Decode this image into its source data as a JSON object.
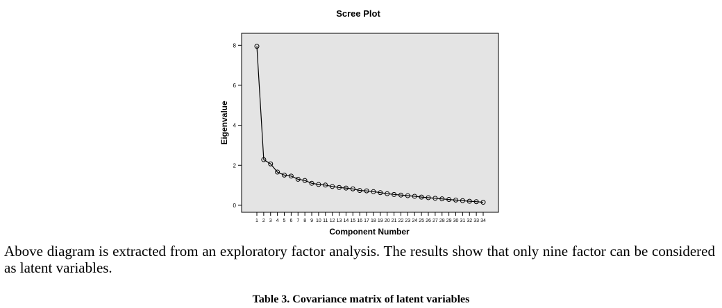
{
  "chart_data": {
    "type": "line",
    "title": "Scree Plot",
    "xlabel": "Component Number",
    "ylabel": "Eigenvalue",
    "ylim": [
      -0.35,
      8.6
    ],
    "y_ticks": [
      0,
      2,
      4,
      6,
      8
    ],
    "grid": false,
    "marker": "open-circle",
    "categories": [
      "1",
      "2",
      "3",
      "4",
      "5",
      "6",
      "7",
      "8",
      "9",
      "10",
      "11",
      "12",
      "13",
      "14",
      "15",
      "16",
      "17",
      "18",
      "19",
      "20",
      "21",
      "22",
      "23",
      "24",
      "25",
      "26",
      "27",
      "28",
      "29",
      "30",
      "31",
      "32",
      "33",
      "34"
    ],
    "values": [
      7.95,
      2.28,
      2.07,
      1.66,
      1.51,
      1.46,
      1.3,
      1.24,
      1.1,
      1.04,
      1.01,
      0.94,
      0.89,
      0.86,
      0.82,
      0.74,
      0.72,
      0.68,
      0.63,
      0.58,
      0.54,
      0.51,
      0.48,
      0.45,
      0.41,
      0.38,
      0.35,
      0.32,
      0.29,
      0.26,
      0.23,
      0.2,
      0.18,
      0.15
    ]
  },
  "text": {
    "paragraph": "Above diagram is extracted from an exploratory factor analysis. The results show that only nine factor can be considered as latent variables.",
    "table_caption": "Table 3. Covariance matrix of latent variables"
  },
  "colors": {
    "plot_background": "#e4e4e4",
    "line": "#000000"
  }
}
